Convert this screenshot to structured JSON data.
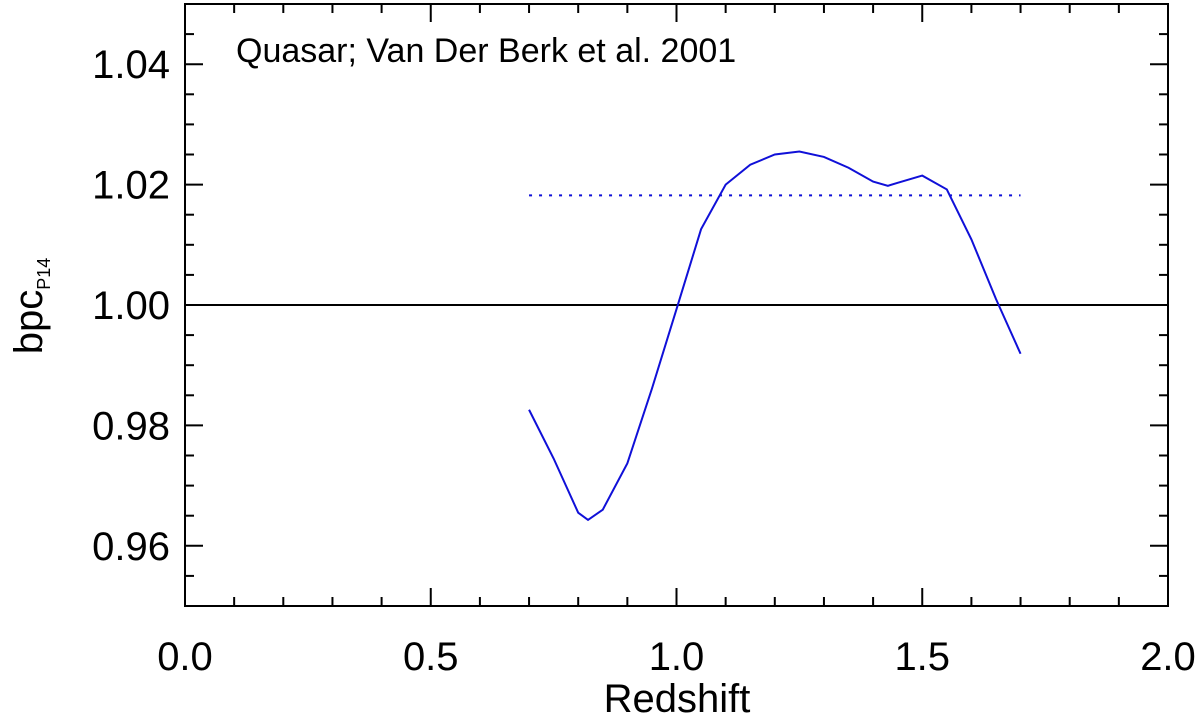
{
  "chart_data": {
    "type": "line",
    "xlabel": "Redshift",
    "ylabel": "bpc",
    "ylabel_sub": "P14",
    "annotation": {
      "text": "Quasar; Van Der Berk et al. 2001",
      "color": "#1010d8"
    },
    "xlim": [
      0,
      2
    ],
    "ylim": [
      0.95,
      1.05
    ],
    "xticks": [
      {
        "value": 0,
        "label": "0.0"
      },
      0.5,
      {
        "value": 1,
        "label": "1.0"
      },
      1.5,
      {
        "value": 2,
        "label": "2.0"
      }
    ],
    "yticks": [
      0.96,
      0.98,
      {
        "value": 1,
        "label": "1.00"
      },
      1.02,
      1.04
    ],
    "xminorticks": [
      0.1,
      0.2,
      0.3,
      0.4,
      0.6,
      0.7,
      0.8,
      0.9,
      1.1,
      1.2,
      1.3,
      1.4,
      1.6,
      1.7,
      1.8,
      1.9
    ],
    "yminorticks": [
      0.955,
      0.965,
      0.97,
      0.975,
      0.985,
      0.99,
      0.995,
      1.005,
      1.01,
      1.015,
      1.025,
      1.03,
      1.035,
      1.045
    ],
    "series": [
      {
        "color": "#000000",
        "linestyle": "solid",
        "x": [
          0,
          2
        ],
        "values": [
          1,
          1
        ]
      },
      {
        "color": "#1010d8",
        "linestyle": "dotted",
        "x": [
          0.7,
          1.7
        ],
        "values": [
          1.0182,
          1.0182
        ]
      },
      {
        "color": "#1010d8",
        "linestyle": "solid",
        "x": [
          0.7,
          0.75,
          0.8,
          0.82,
          0.85,
          0.9,
          0.95,
          1.0,
          1.05,
          1.1,
          1.15,
          1.2,
          1.25,
          1.3,
          1.35,
          1.4,
          1.43,
          1.45,
          1.5,
          1.55,
          1.6,
          1.65,
          1.7
        ],
        "values": [
          0.9826,
          0.9745,
          0.9655,
          0.9643,
          0.966,
          0.9737,
          0.9861,
          0.9993,
          1.0126,
          1.02,
          1.0233,
          1.025,
          1.0255,
          1.0246,
          1.0228,
          1.0205,
          1.0198,
          1.0203,
          1.0215,
          1.0192,
          1.0109,
          1.001,
          0.9919
        ]
      }
    ]
  }
}
